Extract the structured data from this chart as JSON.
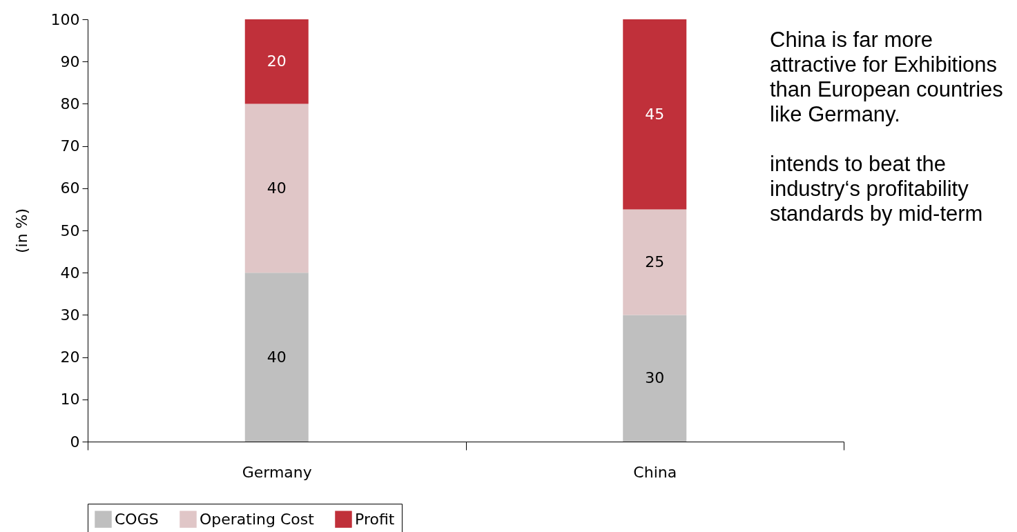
{
  "chart_data": {
    "type": "bar",
    "stacked": true,
    "ylabel": "(in %)",
    "categories": [
      "Germany",
      "China"
    ],
    "series": [
      {
        "name": "COGS",
        "color": "#bfbfbf",
        "values": [
          40,
          30
        ]
      },
      {
        "name": "Operating Cost",
        "color": "#e0c6c7",
        "values": [
          40,
          25
        ]
      },
      {
        "name": "Profit",
        "color": "#c0303a",
        "values": [
          20,
          45
        ]
      }
    ],
    "ylim": [
      0,
      100
    ],
    "yticks": [
      0,
      10,
      20,
      30,
      40,
      50,
      60,
      70,
      80,
      90,
      100
    ],
    "grid": false,
    "legend": "bottom",
    "data_labels": true,
    "annotations": [
      "China is far more attractive for Exhibitions than European countries like Germany.",
      "intends to beat the industry‘s profitability standards by mid-term"
    ]
  }
}
